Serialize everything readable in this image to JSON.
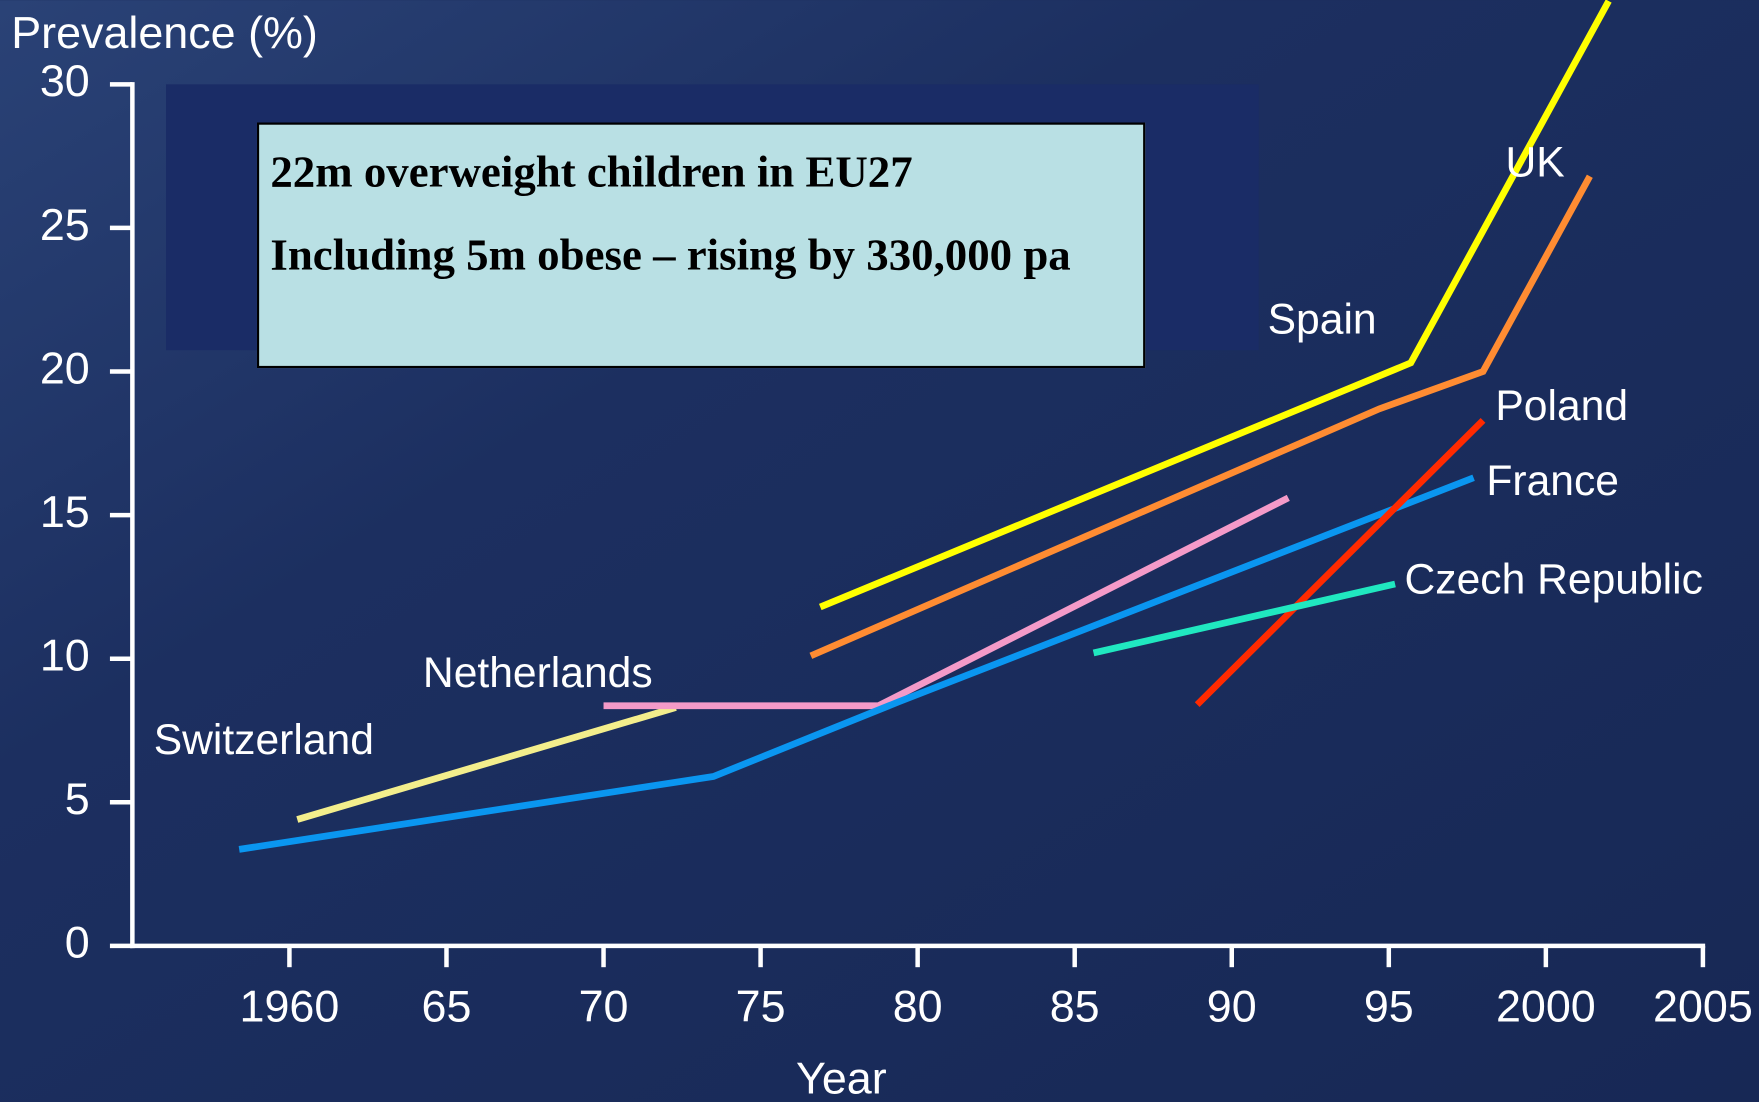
{
  "chart_data": {
    "type": "line",
    "ylabel": "Prevalence (%)",
    "xlabel": "Year",
    "annotations": [
      "22m overweight children in EU27",
      "Including 5m obese – rising by 330,000 pa"
    ],
    "xlim": [
      1955,
      2005
    ],
    "xticks": [
      1960,
      {
        "value": 1965,
        "label": "65"
      },
      {
        "value": 1970,
        "label": "70"
      },
      {
        "value": 1975,
        "label": "75"
      },
      {
        "value": 1980,
        "label": "80"
      },
      {
        "value": 1985,
        "label": "85"
      },
      {
        "value": 1990,
        "label": "90"
      },
      {
        "value": 1995,
        "label": "95"
      },
      2000,
      2005
    ],
    "ylim": [
      0,
      30
    ],
    "yticks": [
      0,
      5,
      10,
      15,
      20,
      25,
      30
    ],
    "series": [
      {
        "name": "Switzerland",
        "color": "#f3ee8c",
        "x": [
          1960.25,
          1972.3
        ],
        "values": [
          4.4,
          8.3
        ]
      },
      {
        "name": "Netherlands",
        "color": "#f49ac8",
        "x": [
          1970,
          1978.75,
          1991.8
        ],
        "values": [
          8.36,
          8.36,
          15.6
        ]
      },
      {
        "name": "France",
        "color": "#0a96f0",
        "x": [
          1958.4,
          1973.5,
          1979.4,
          1997.7
        ],
        "values": [
          3.36,
          5.9,
          8.5,
          16.3
        ]
      },
      {
        "name": "Spain",
        "color": "#ffff00",
        "x": [
          1976.9,
          1995.7,
          2002.0
        ],
        "values": [
          11.8,
          20.3,
          32.9
        ]
      },
      {
        "name": "UK",
        "color": "#ff8c32",
        "x": [
          1976.6,
          1994.7,
          1998.0,
          2001.4
        ],
        "values": [
          10.1,
          18.7,
          20.0,
          26.8
        ]
      },
      {
        "name": "Poland",
        "color": "#ff2a00",
        "x": [
          1988.9,
          1998.0
        ],
        "values": [
          8.4,
          18.3
        ]
      },
      {
        "name": "Czech Republic",
        "color": "#20e8c0",
        "x": [
          1985.6,
          1995.2
        ],
        "values": [
          10.2,
          12.6
        ]
      }
    ]
  }
}
